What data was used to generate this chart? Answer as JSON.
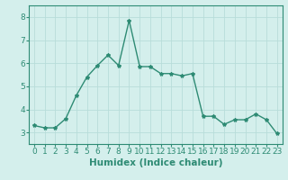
{
  "x": [
    0,
    1,
    2,
    3,
    4,
    5,
    6,
    7,
    8,
    9,
    10,
    11,
    12,
    13,
    14,
    15,
    16,
    17,
    18,
    19,
    20,
    21,
    22,
    23
  ],
  "y": [
    3.3,
    3.2,
    3.2,
    3.6,
    4.6,
    5.4,
    5.9,
    6.35,
    5.9,
    7.85,
    5.85,
    5.85,
    5.55,
    5.55,
    5.45,
    5.55,
    3.7,
    3.7,
    3.35,
    3.55,
    3.55,
    3.8,
    3.55,
    2.95
  ],
  "line_color": "#2e8b74",
  "marker": "*",
  "marker_size": 3,
  "xlabel": "Humidex (Indice chaleur)",
  "xlabel_fontsize": 7.5,
  "ylim": [
    2.5,
    8.5
  ],
  "xlim": [
    -0.5,
    23.5
  ],
  "yticks": [
    3,
    4,
    5,
    6,
    7,
    8
  ],
  "xticks": [
    0,
    1,
    2,
    3,
    4,
    5,
    6,
    7,
    8,
    9,
    10,
    11,
    12,
    13,
    14,
    15,
    16,
    17,
    18,
    19,
    20,
    21,
    22,
    23
  ],
  "bg_color": "#d4efec",
  "grid_color": "#b8ddd9",
  "tick_fontsize": 6.5,
  "line_width": 1.0
}
